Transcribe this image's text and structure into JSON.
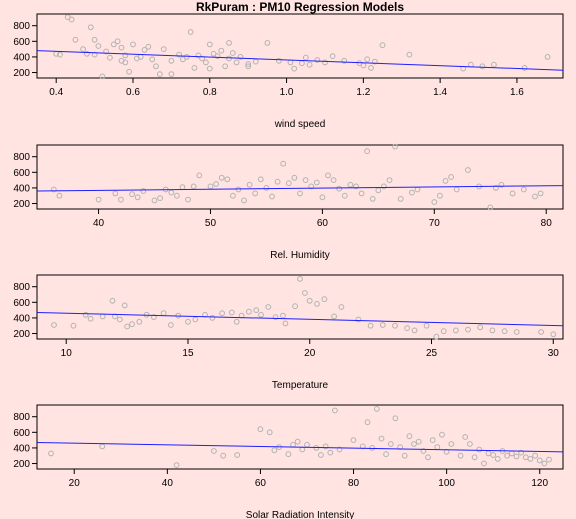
{
  "title": "RkPuram : PM10 Regression Models",
  "colors": {
    "background": "#ffe4e1",
    "points": "#b3b3b3",
    "fit_line": "#1f1fff"
  },
  "chart_data": [
    {
      "type": "scatter",
      "xlabel": "wind speed",
      "xlim": [
        0.35,
        1.72
      ],
      "ylim": [
        130,
        950
      ],
      "xticks": [
        0.4,
        0.6,
        0.8,
        1.0,
        1.2,
        1.4,
        1.6
      ],
      "xtick_labels": [
        "0.4",
        "0.6",
        "0.8",
        "1.0",
        "1.2",
        "1.4",
        "1.6"
      ],
      "yticks": [
        200,
        400,
        600,
        800
      ],
      "fit_line": [
        [
          0.35,
          480
        ],
        [
          1.72,
          230
        ]
      ],
      "points": [
        [
          0.4,
          440
        ],
        [
          0.41,
          430
        ],
        [
          0.43,
          910
        ],
        [
          0.44,
          880
        ],
        [
          0.45,
          620
        ],
        [
          0.47,
          500
        ],
        [
          0.48,
          440
        ],
        [
          0.49,
          780
        ],
        [
          0.5,
          430
        ],
        [
          0.5,
          620
        ],
        [
          0.51,
          540
        ],
        [
          0.52,
          150
        ],
        [
          0.53,
          470
        ],
        [
          0.54,
          390
        ],
        [
          0.55,
          560
        ],
        [
          0.56,
          600
        ],
        [
          0.57,
          520
        ],
        [
          0.57,
          350
        ],
        [
          0.58,
          420
        ],
        [
          0.58,
          330
        ],
        [
          0.59,
          210
        ],
        [
          0.6,
          560
        ],
        [
          0.61,
          380
        ],
        [
          0.62,
          400
        ],
        [
          0.63,
          490
        ],
        [
          0.64,
          530
        ],
        [
          0.65,
          370
        ],
        [
          0.66,
          280
        ],
        [
          0.67,
          180
        ],
        [
          0.68,
          500
        ],
        [
          0.7,
          180
        ],
        [
          0.7,
          350
        ],
        [
          0.72,
          430
        ],
        [
          0.73,
          370
        ],
        [
          0.74,
          400
        ],
        [
          0.75,
          720
        ],
        [
          0.76,
          260
        ],
        [
          0.77,
          420
        ],
        [
          0.78,
          380
        ],
        [
          0.79,
          330
        ],
        [
          0.8,
          560
        ],
        [
          0.8,
          250
        ],
        [
          0.81,
          440
        ],
        [
          0.82,
          410
        ],
        [
          0.83,
          480
        ],
        [
          0.84,
          280
        ],
        [
          0.85,
          580
        ],
        [
          0.85,
          380
        ],
        [
          0.86,
          450
        ],
        [
          0.87,
          330
        ],
        [
          0.88,
          400
        ],
        [
          0.9,
          310
        ],
        [
          0.9,
          280
        ],
        [
          0.92,
          340
        ],
        [
          0.95,
          580
        ],
        [
          0.98,
          350
        ],
        [
          1.01,
          330
        ],
        [
          1.02,
          250
        ],
        [
          1.04,
          320
        ],
        [
          1.05,
          390
        ],
        [
          1.06,
          300
        ],
        [
          1.08,
          360
        ],
        [
          1.1,
          330
        ],
        [
          1.12,
          410
        ],
        [
          1.15,
          350
        ],
        [
          1.19,
          320
        ],
        [
          1.2,
          290
        ],
        [
          1.21,
          370
        ],
        [
          1.22,
          260
        ],
        [
          1.23,
          340
        ],
        [
          1.25,
          550
        ],
        [
          1.32,
          430
        ],
        [
          1.46,
          250
        ],
        [
          1.48,
          300
        ],
        [
          1.51,
          280
        ],
        [
          1.54,
          300
        ],
        [
          1.62,
          260
        ],
        [
          1.68,
          400
        ]
      ]
    },
    {
      "type": "scatter",
      "xlabel": "Rel. Humidity",
      "xlim": [
        34.5,
        81.5
      ],
      "ylim": [
        130,
        950
      ],
      "xticks": [
        40,
        50,
        60,
        70,
        80
      ],
      "xtick_labels": [
        "40",
        "50",
        "60",
        "70",
        "80"
      ],
      "yticks": [
        200,
        400,
        600,
        800
      ],
      "fit_line": [
        [
          34.5,
          360
        ],
        [
          81.5,
          430
        ]
      ],
      "points": [
        [
          36,
          380
        ],
        [
          36.5,
          300
        ],
        [
          40,
          250
        ],
        [
          41.5,
          330
        ],
        [
          42,
          250
        ],
        [
          43,
          320
        ],
        [
          43.5,
          280
        ],
        [
          44,
          360
        ],
        [
          45,
          240
        ],
        [
          45.5,
          270
        ],
        [
          46,
          380
        ],
        [
          46.5,
          340
        ],
        [
          47,
          300
        ],
        [
          47.5,
          410
        ],
        [
          48,
          250
        ],
        [
          48.5,
          420
        ],
        [
          49,
          560
        ],
        [
          50,
          420
        ],
        [
          50.5,
          450
        ],
        [
          51,
          530
        ],
        [
          51.5,
          510
        ],
        [
          52,
          300
        ],
        [
          52.5,
          380
        ],
        [
          53,
          240
        ],
        [
          53.5,
          440
        ],
        [
          54,
          330
        ],
        [
          54.5,
          510
        ],
        [
          55,
          400
        ],
        [
          55.5,
          290
        ],
        [
          56,
          480
        ],
        [
          56.5,
          710
        ],
        [
          57,
          460
        ],
        [
          57.5,
          530
        ],
        [
          58,
          330
        ],
        [
          58.5,
          500
        ],
        [
          59,
          420
        ],
        [
          59.5,
          470
        ],
        [
          60,
          280
        ],
        [
          60.5,
          560
        ],
        [
          61,
          500
        ],
        [
          61.5,
          390
        ],
        [
          62,
          300
        ],
        [
          62.5,
          440
        ],
        [
          63,
          420
        ],
        [
          63.5,
          330
        ],
        [
          64,
          870
        ],
        [
          64.5,
          260
        ],
        [
          65,
          370
        ],
        [
          65.5,
          420
        ],
        [
          66,
          500
        ],
        [
          66.5,
          930
        ],
        [
          67,
          260
        ],
        [
          68,
          340
        ],
        [
          68.5,
          380
        ],
        [
          70,
          220
        ],
        [
          70.5,
          300
        ],
        [
          71,
          490
        ],
        [
          71.5,
          540
        ],
        [
          72,
          380
        ],
        [
          73,
          630
        ],
        [
          74,
          420
        ],
        [
          75,
          150
        ],
        [
          75.5,
          400
        ],
        [
          76,
          440
        ],
        [
          77,
          330
        ],
        [
          78,
          380
        ],
        [
          79,
          290
        ],
        [
          79.5,
          330
        ]
      ]
    },
    {
      "type": "scatter",
      "xlabel": "Temperature",
      "xlim": [
        8.8,
        30.4
      ],
      "ylim": [
        130,
        950
      ],
      "xticks": [
        10,
        15,
        20,
        25,
        30
      ],
      "xtick_labels": [
        "10",
        "15",
        "20",
        "25",
        "30"
      ],
      "yticks": [
        200,
        400,
        600,
        800
      ],
      "fit_line": [
        [
          8.8,
          470
        ],
        [
          30.4,
          300
        ]
      ],
      "points": [
        [
          9.5,
          310
        ],
        [
          10.3,
          300
        ],
        [
          10.8,
          440
        ],
        [
          11.0,
          390
        ],
        [
          11.5,
          420
        ],
        [
          11.9,
          620
        ],
        [
          12.0,
          420
        ],
        [
          12.2,
          380
        ],
        [
          12.4,
          560
        ],
        [
          12.5,
          290
        ],
        [
          12.7,
          320
        ],
        [
          13.0,
          350
        ],
        [
          13.3,
          440
        ],
        [
          13.6,
          410
        ],
        [
          14.0,
          460
        ],
        [
          14.3,
          310
        ],
        [
          14.6,
          430
        ],
        [
          15.0,
          350
        ],
        [
          15.3,
          380
        ],
        [
          15.7,
          440
        ],
        [
          16.0,
          400
        ],
        [
          16.4,
          460
        ],
        [
          16.8,
          470
        ],
        [
          17.0,
          350
        ],
        [
          17.2,
          430
        ],
        [
          17.5,
          480
        ],
        [
          17.8,
          500
        ],
        [
          18.0,
          440
        ],
        [
          18.3,
          540
        ],
        [
          18.6,
          410
        ],
        [
          18.9,
          430
        ],
        [
          19.0,
          330
        ],
        [
          19.4,
          550
        ],
        [
          19.6,
          900
        ],
        [
          19.8,
          720
        ],
        [
          20.0,
          620
        ],
        [
          20.3,
          580
        ],
        [
          20.6,
          640
        ],
        [
          21.0,
          420
        ],
        [
          21.3,
          540
        ],
        [
          22.0,
          380
        ],
        [
          22.5,
          300
        ],
        [
          23.0,
          310
        ],
        [
          23.5,
          300
        ],
        [
          24.0,
          270
        ],
        [
          24.3,
          240
        ],
        [
          24.8,
          300
        ],
        [
          25.2,
          160
        ],
        [
          25.5,
          230
        ],
        [
          26.0,
          240
        ],
        [
          26.5,
          250
        ],
        [
          27.0,
          280
        ],
        [
          27.5,
          240
        ],
        [
          28.0,
          230
        ],
        [
          28.5,
          220
        ],
        [
          29.5,
          220
        ],
        [
          30.0,
          190
        ]
      ]
    },
    {
      "type": "scatter",
      "xlabel": "Solar Radiation Intensity",
      "xlim": [
        12,
        125
      ],
      "ylim": [
        130,
        950
      ],
      "xticks": [
        20,
        40,
        60,
        80,
        100,
        120
      ],
      "xtick_labels": [
        "20",
        "40",
        "60",
        "80",
        "100",
        "120"
      ],
      "yticks": [
        200,
        400,
        600,
        800
      ],
      "fit_line": [
        [
          12,
          470
        ],
        [
          125,
          350
        ]
      ],
      "points": [
        [
          15,
          330
        ],
        [
          26,
          420
        ],
        [
          42,
          180
        ],
        [
          50,
          360
        ],
        [
          52,
          300
        ],
        [
          55,
          310
        ],
        [
          60,
          640
        ],
        [
          62,
          600
        ],
        [
          63,
          370
        ],
        [
          64,
          410
        ],
        [
          66,
          320
        ],
        [
          67,
          440
        ],
        [
          68,
          480
        ],
        [
          69,
          380
        ],
        [
          70,
          440
        ],
        [
          72,
          400
        ],
        [
          73,
          310
        ],
        [
          74,
          420
        ],
        [
          75,
          340
        ],
        [
          76,
          880
        ],
        [
          77,
          380
        ],
        [
          80,
          500
        ],
        [
          82,
          420
        ],
        [
          83,
          730
        ],
        [
          84,
          400
        ],
        [
          85,
          900
        ],
        [
          86,
          520
        ],
        [
          87,
          320
        ],
        [
          88,
          450
        ],
        [
          89,
          780
        ],
        [
          90,
          410
        ],
        [
          91,
          300
        ],
        [
          92,
          550
        ],
        [
          93,
          450
        ],
        [
          94,
          480
        ],
        [
          95,
          360
        ],
        [
          96,
          280
        ],
        [
          97,
          500
        ],
        [
          98,
          410
        ],
        [
          99,
          570
        ],
        [
          100,
          350
        ],
        [
          101,
          450
        ],
        [
          103,
          300
        ],
        [
          104,
          540
        ],
        [
          105,
          450
        ],
        [
          106,
          280
        ],
        [
          107,
          380
        ],
        [
          108,
          200
        ],
        [
          109,
          330
        ],
        [
          110,
          310
        ],
        [
          111,
          260
        ],
        [
          112,
          360
        ],
        [
          113,
          300
        ],
        [
          114,
          330
        ],
        [
          115,
          290
        ],
        [
          116,
          340
        ],
        [
          117,
          280
        ],
        [
          118,
          260
        ],
        [
          119,
          300
        ],
        [
          120,
          240
        ],
        [
          121,
          200
        ],
        [
          122,
          250
        ]
      ]
    }
  ]
}
